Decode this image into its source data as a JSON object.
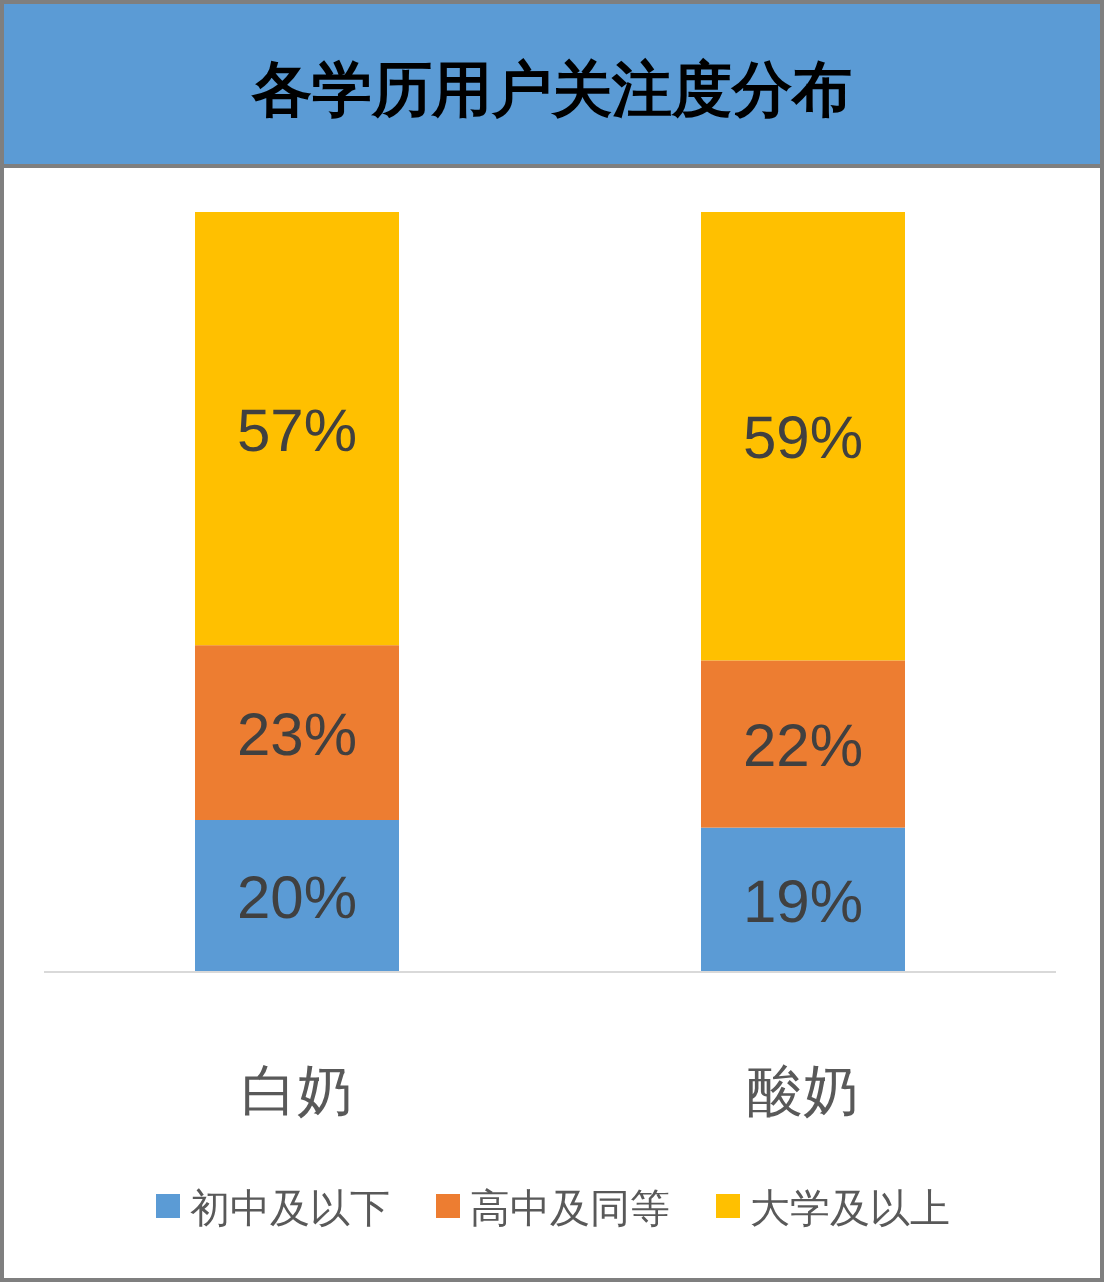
{
  "chart_data": {
    "type": "bar",
    "title": "各学历用户关注度分布",
    "stacked": true,
    "data_labels": true,
    "legend": "bottom",
    "categories": [
      "白奶",
      "酸奶"
    ],
    "series": [
      {
        "name": "初中及以下",
        "color": "#5b9bd5",
        "values": [
          20,
          19
        ],
        "value_labels": [
          "20%",
          "19%"
        ]
      },
      {
        "name": "高中及同等",
        "color": "#ed7d31",
        "values": [
          23,
          22
        ],
        "value_labels": [
          "23%",
          "22%"
        ]
      },
      {
        "name": "大学及以上",
        "color": "#ffc000",
        "values": [
          57,
          59
        ],
        "value_labels": [
          "57%",
          "59%"
        ]
      }
    ]
  }
}
